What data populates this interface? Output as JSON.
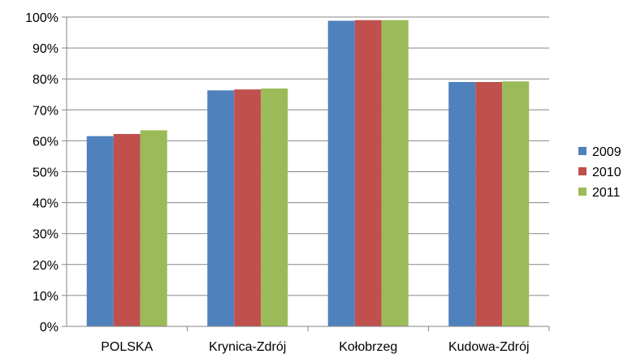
{
  "chart_data": {
    "type": "bar",
    "categories": [
      "POLSKA",
      "Krynica-Zdrój",
      "Kołobrzeg",
      "Kudowa-Zdrój"
    ],
    "series": [
      {
        "name": "2009",
        "color": "#4F81BD",
        "values": [
          61.5,
          76.3,
          98.8,
          79.0
        ]
      },
      {
        "name": "2010",
        "color": "#C0504D",
        "values": [
          62.2,
          76.6,
          99.0,
          79.0
        ]
      },
      {
        "name": "2011",
        "color": "#9BBB59",
        "values": [
          63.4,
          76.9,
          99.0,
          79.2
        ]
      }
    ],
    "y_ticks": [
      "0%",
      "10%",
      "20%",
      "30%",
      "40%",
      "50%",
      "60%",
      "70%",
      "80%",
      "90%",
      "100%"
    ],
    "ylim": [
      0,
      100
    ],
    "grid": true,
    "legend": "right",
    "title": "",
    "xlabel": "",
    "ylabel": ""
  }
}
